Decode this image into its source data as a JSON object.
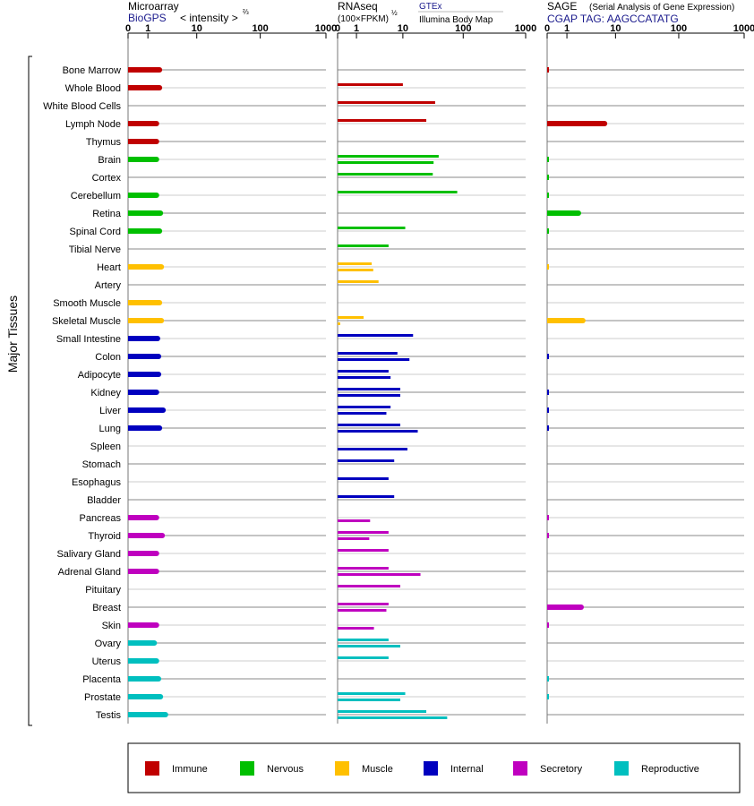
{
  "panels": [
    {
      "title": "Microarray",
      "subtitle": "BioGPS",
      "subtitle_color": "#1a1a8c",
      "unit_label": "< intensity >",
      "unit_superscript": "⅔",
      "ticks": [
        "0",
        "1",
        "10",
        "100",
        "1000"
      ]
    },
    {
      "title": "RNAseq",
      "unit_label": "(100×FPKM)",
      "unit_superscript": "½",
      "sources": [
        "GTEx",
        "Illumina Body Map"
      ],
      "ticks": [
        "0",
        "1",
        "10",
        "100",
        "1000"
      ]
    },
    {
      "title": "SAGE",
      "title_note": "(Serial Analysis of Gene Expression)",
      "subtitle": "CGAP TAG: AAGCCATATG",
      "subtitle_color": "#1a1a8c",
      "ticks": [
        "0",
        "1",
        "10",
        "100",
        "1000"
      ]
    }
  ],
  "y_axis_label": "Major Tissues",
  "legend": [
    {
      "label": "Immune",
      "color": "#c00000"
    },
    {
      "label": "Nervous",
      "color": "#00bf00"
    },
    {
      "label": "Muscle",
      "color": "#ffc000"
    },
    {
      "label": "Internal",
      "color": "#0000bf"
    },
    {
      "label": "Secretory",
      "color": "#bf00bf"
    },
    {
      "label": "Reproductive",
      "color": "#00bfbf"
    }
  ],
  "chart_data": {
    "type": "bar",
    "orientation": "horizontal",
    "x_scale": "log(1+x)",
    "xlim": [
      0,
      1000
    ],
    "categories": [
      "Bone Marrow",
      "Whole Blood",
      "White Blood Cells",
      "Lymph Node",
      "Thymus",
      "Brain",
      "Cortex",
      "Cerebellum",
      "Retina",
      "Spinal Cord",
      "Tibial Nerve",
      "Heart",
      "Artery",
      "Smooth Muscle",
      "Skeletal Muscle",
      "Small Intestine",
      "Colon",
      "Adipocyte",
      "Kidney",
      "Liver",
      "Lung",
      "Spleen",
      "Stomach",
      "Esophagus",
      "Bladder",
      "Pancreas",
      "Thyroid",
      "Salivary Gland",
      "Adrenal Gland",
      "Pituitary",
      "Breast",
      "Skin",
      "Ovary",
      "Uterus",
      "Placenta",
      "Prostate",
      "Testis"
    ],
    "groups": [
      "Immune",
      "Immune",
      "Immune",
      "Immune",
      "Immune",
      "Nervous",
      "Nervous",
      "Nervous",
      "Nervous",
      "Nervous",
      "Nervous",
      "Muscle",
      "Muscle",
      "Muscle",
      "Muscle",
      "Internal",
      "Internal",
      "Internal",
      "Internal",
      "Internal",
      "Internal",
      "Internal",
      "Internal",
      "Internal",
      "Internal",
      "Secretory",
      "Secretory",
      "Secretory",
      "Secretory",
      "Secretory",
      "Secretory",
      "Secretory",
      "Reproductive",
      "Reproductive",
      "Reproductive",
      "Reproductive",
      "Reproductive"
    ],
    "series": [
      {
        "name": "Microarray",
        "values": [
          2.0,
          2.0,
          null,
          1.7,
          1.7,
          1.7,
          null,
          1.7,
          2.1,
          2.0,
          null,
          2.2,
          null,
          2.0,
          2.2,
          1.8,
          1.9,
          1.9,
          1.7,
          2.4,
          2.0,
          null,
          null,
          null,
          null,
          1.7,
          2.3,
          1.7,
          1.7,
          null,
          null,
          1.7,
          1.5,
          1.7,
          1.9,
          2.1,
          2.7
        ]
      },
      {
        "name": "RNAseq GTEx",
        "values": [
          null,
          10,
          35,
          25,
          null,
          40,
          32,
          80,
          null,
          11,
          5.5,
          2.5,
          3.5,
          null,
          1.6,
          15,
          8,
          5.5,
          9,
          6,
          9,
          null,
          7,
          5.5,
          7,
          null,
          5.5,
          5.5,
          5.5,
          9,
          5.5,
          null,
          5.5,
          5.5,
          null,
          11,
          25
        ]
      },
      {
        "name": "RNAseq Illumina Body Map",
        "values": [
          null,
          null,
          null,
          null,
          null,
          33,
          null,
          null,
          null,
          null,
          null,
          2.7,
          null,
          null,
          0.1,
          null,
          13,
          6,
          9,
          5,
          18,
          12,
          null,
          null,
          null,
          2.3,
          2.2,
          null,
          20,
          null,
          5,
          2.8,
          9,
          null,
          null,
          9,
          55
        ]
      },
      {
        "name": "SAGE",
        "values": [
          0.05,
          null,
          null,
          6.5,
          null,
          0.05,
          0.05,
          0.05,
          2,
          0.05,
          null,
          0.02,
          null,
          null,
          2.5,
          null,
          0.05,
          null,
          0.05,
          0.05,
          0.05,
          null,
          null,
          null,
          null,
          0.05,
          0.05,
          null,
          null,
          null,
          2.3,
          0.05,
          null,
          null,
          0.05,
          0.05,
          null
        ]
      }
    ]
  }
}
